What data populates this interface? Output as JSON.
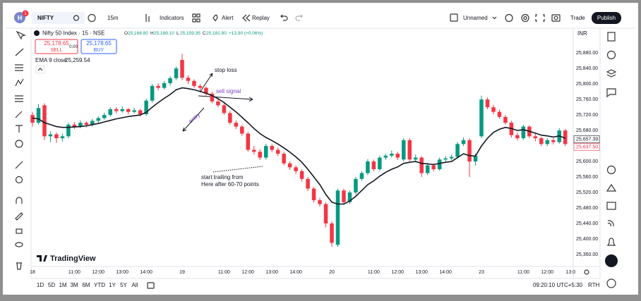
{
  "toolbar": {
    "avatar": "H",
    "badge": "1",
    "symbol": "NIFTY",
    "interval": "15m",
    "indicators": "Indicators",
    "alert": "Alert",
    "replay": "Replay",
    "layout": "Unnamed",
    "trade": "Trade",
    "publish": "Publish"
  },
  "legend": {
    "title": "Nifty 50 Index · 15 · NSE",
    "ohlc": [
      {
        "k": "O",
        "v": "25,168.80"
      },
      {
        "k": "H",
        "v": "25,189.10"
      },
      {
        "k": "L",
        "v": "25,159.35"
      },
      {
        "k": "C",
        "v": "25,181.80"
      }
    ],
    "change": "+13.90 (+0.06%)",
    "sell_price": "25,178.65",
    "sell": "SELL",
    "spread": "0.00",
    "buy_price": "25,178.65",
    "buy": "BUY",
    "ema": "EMA 9 close",
    "ema_value": "25,259.54"
  },
  "currency": "INR",
  "logo": "TradingView",
  "ranges": [
    "1D",
    "5D",
    "1M",
    "3M",
    "6M",
    "YTD",
    "1Y",
    "5Y",
    "All"
  ],
  "clock": "09:20:10 UTC+5:30",
  "session": "RTH",
  "chart_data": {
    "type": "candlestick",
    "up_color": "#089981",
    "down_color": "#f23645",
    "grid": false,
    "candles": [
      [
        25720,
        25728,
        25690,
        25700
      ],
      [
        25700,
        25748,
        25695,
        25738
      ],
      [
        25745,
        25750,
        25655,
        25665
      ],
      [
        25665,
        25678,
        25650,
        25670
      ],
      [
        25670,
        25675,
        25648,
        25660
      ],
      [
        25660,
        25672,
        25652,
        25665
      ],
      [
        25665,
        25700,
        25660,
        25695
      ],
      [
        25695,
        25702,
        25684,
        25690
      ],
      [
        25690,
        25706,
        25686,
        25700
      ],
      [
        25700,
        25704,
        25688,
        25695
      ],
      [
        25695,
        25710,
        25690,
        25705
      ],
      [
        25705,
        25716,
        25700,
        25712
      ],
      [
        25712,
        25726,
        25708,
        25720
      ],
      [
        25720,
        25740,
        25716,
        25735
      ],
      [
        25735,
        25740,
        25724,
        25730
      ],
      [
        25730,
        25742,
        25726,
        25735
      ],
      [
        25735,
        25738,
        25722,
        25728
      ],
      [
        25728,
        25738,
        25724,
        25732
      ],
      [
        25732,
        25736,
        25716,
        25722
      ],
      [
        25722,
        25762,
        25718,
        25757
      ],
      [
        25757,
        25800,
        25752,
        25795
      ],
      [
        25795,
        25802,
        25784,
        25790
      ],
      [
        25790,
        25808,
        25786,
        25802
      ],
      [
        25802,
        25820,
        25796,
        25815
      ],
      [
        25815,
        25845,
        25810,
        25840
      ],
      [
        25862,
        25878,
        25810,
        25816
      ],
      [
        25816,
        25822,
        25800,
        25808
      ],
      [
        25808,
        25812,
        25790,
        25795
      ],
      [
        25795,
        25800,
        25784,
        25790
      ],
      [
        25790,
        25794,
        25770,
        25775
      ],
      [
        25775,
        25780,
        25750,
        25755
      ],
      [
        25755,
        25762,
        25740,
        25745
      ],
      [
        25745,
        25750,
        25720,
        25725
      ],
      [
        25725,
        25730,
        25695,
        25700
      ],
      [
        25700,
        25706,
        25684,
        25690
      ],
      [
        25690,
        25695,
        25666,
        25672
      ],
      [
        25672,
        25676,
        25625,
        25630
      ],
      [
        25630,
        25640,
        25618,
        25625
      ],
      [
        25625,
        25632,
        25604,
        25610
      ],
      [
        25610,
        25646,
        25605,
        25640
      ],
      [
        25640,
        25645,
        25624,
        25630
      ],
      [
        25630,
        25636,
        25614,
        25620
      ],
      [
        25620,
        25625,
        25590,
        25595
      ],
      [
        25595,
        25600,
        25578,
        25585
      ],
      [
        25585,
        25590,
        25568,
        25575
      ],
      [
        25575,
        25580,
        25548,
        25555
      ],
      [
        25555,
        25560,
        25524,
        25530
      ],
      [
        25530,
        25535,
        25494,
        25500
      ],
      [
        25500,
        25506,
        25484,
        25490
      ],
      [
        25490,
        25495,
        25430,
        25440
      ],
      [
        25440,
        25446,
        25380,
        25390
      ],
      [
        25385,
        25530,
        25380,
        25525
      ],
      [
        25525,
        25530,
        25488,
        25495
      ],
      [
        25495,
        25525,
        25490,
        25520
      ],
      [
        25520,
        25560,
        25515,
        25555
      ],
      [
        25555,
        25575,
        25550,
        25570
      ],
      [
        25570,
        25606,
        25565,
        25600
      ],
      [
        25600,
        25605,
        25575,
        25580
      ],
      [
        25580,
        25615,
        25576,
        25610
      ],
      [
        25610,
        25620,
        25604,
        25615
      ],
      [
        25615,
        25628,
        25610,
        25620
      ],
      [
        25620,
        25625,
        25604,
        25610
      ],
      [
        25605,
        25660,
        25600,
        25655
      ],
      [
        25655,
        25660,
        25600,
        25605
      ],
      [
        25605,
        25618,
        25598,
        25610
      ],
      [
        25610,
        25614,
        25560,
        25570
      ],
      [
        25570,
        25596,
        25565,
        25590
      ],
      [
        25590,
        25595,
        25574,
        25580
      ],
      [
        25580,
        25610,
        25576,
        25605
      ],
      [
        25605,
        25614,
        25600,
        25608
      ],
      [
        25608,
        25618,
        25604,
        25612
      ],
      [
        25612,
        25650,
        25608,
        25645
      ],
      [
        25645,
        25662,
        25640,
        25655
      ],
      [
        25655,
        25660,
        25560,
        25600
      ],
      [
        25600,
        25620,
        25590,
        25615
      ],
      [
        25665,
        25770,
        25660,
        25760
      ],
      [
        25760,
        25765,
        25735,
        25740
      ],
      [
        25740,
        25746,
        25722,
        25728
      ],
      [
        25728,
        25734,
        25710,
        25715
      ],
      [
        25715,
        25720,
        25695,
        25700
      ],
      [
        25700,
        25705,
        25662,
        25668
      ],
      [
        25668,
        25675,
        25654,
        25660
      ],
      [
        25660,
        25695,
        25656,
        25690
      ],
      [
        25690,
        25694,
        25660,
        25665
      ],
      [
        25665,
        25672,
        25652,
        25660
      ],
      [
        25660,
        25664,
        25640,
        25645
      ],
      [
        25645,
        25660,
        25640,
        25655
      ],
      [
        25655,
        25660,
        25644,
        25650
      ],
      [
        25650,
        25686,
        25646,
        25680
      ],
      [
        25680,
        25684,
        25640,
        25645
      ]
    ],
    "ema": {
      "color": "#131722",
      "values": [
        25712,
        25710,
        25700,
        25695,
        25690,
        25688,
        25688,
        25689,
        25690,
        25692,
        25695,
        25698,
        25702,
        25706,
        25710,
        25713,
        25716,
        25718,
        25720,
        25727,
        25740,
        25752,
        25763,
        25773,
        25785,
        25790,
        25788,
        25785,
        25781,
        25776,
        25770,
        25762,
        25752,
        25740,
        25728,
        25714,
        25700,
        25685,
        25672,
        25662,
        25654,
        25645,
        25635,
        25624,
        25612,
        25598,
        25580,
        25560,
        25540,
        25515,
        25495,
        25490,
        25490,
        25498,
        25510,
        25525,
        25540,
        25550,
        25562,
        25572,
        25580,
        25586,
        25595,
        25598,
        25600,
        25595,
        25594,
        25592,
        25595,
        25598,
        25600,
        25610,
        25620,
        25615,
        25614,
        25640,
        25660,
        25675,
        25683,
        25688,
        25685,
        25680,
        25682,
        25678,
        25673,
        25668,
        25666,
        25663,
        25666,
        25660
      ]
    },
    "xlim": [
      -0.24,
      90.33
    ],
    "xticks": [
      {
        "value": 0,
        "label": "18"
      },
      {
        "value": 7,
        "label": "11:00"
      },
      {
        "value": 11,
        "label": "12:00"
      },
      {
        "value": 15,
        "label": "13:00"
      },
      {
        "value": 19,
        "label": "14:00"
      },
      {
        "value": 25,
        "label": "19"
      },
      {
        "value": 32,
        "label": "11:00"
      },
      {
        "value": 36,
        "label": "12:00"
      },
      {
        "value": 40,
        "label": "13:00"
      },
      {
        "value": 44,
        "label": "14:00"
      },
      {
        "value": 50,
        "label": "20"
      },
      {
        "value": 57,
        "label": "11:00"
      },
      {
        "value": 61,
        "label": "12:00"
      },
      {
        "value": 65,
        "label": "13:00"
      },
      {
        "value": 69,
        "label": "14:00"
      },
      {
        "value": 75,
        "label": "23"
      },
      {
        "value": 82,
        "label": "11:00"
      },
      {
        "value": 86,
        "label": "12:00"
      },
      {
        "value": 89.9,
        "label": "13:0"
      }
    ],
    "ylim": [
      25329,
      25944
    ],
    "yticks": [
      {
        "value": 25880,
        "label": "25,880.00"
      },
      {
        "value": 25840,
        "label": "25,840.00"
      },
      {
        "value": 25800,
        "label": "25,800.00"
      },
      {
        "value": 25760,
        "label": "25,760.00"
      },
      {
        "value": 25720,
        "label": "25,720.00"
      },
      {
        "value": 25680,
        "label": "25,680.00"
      },
      {
        "value": 25600,
        "label": "25,600.00"
      },
      {
        "value": 25560,
        "label": "25,560.00"
      },
      {
        "value": 25520,
        "label": "25,520.00"
      },
      {
        "value": 25480,
        "label": "25,480.00"
      },
      {
        "value": 25440,
        "label": "25,440.00"
      },
      {
        "value": 25400,
        "label": "25,400.00"
      },
      {
        "value": 25360,
        "label": "25,360.00"
      }
    ],
    "price_tags": [
      {
        "value": 25657.39,
        "label": "25,657.39",
        "color": "#131722"
      },
      {
        "value": 25637.5,
        "label": "25,637.50",
        "color": "#f23645"
      }
    ],
    "annotations": [
      "stop loss",
      "sell signal",
      "entry",
      "start trailing from",
      "Here after 60-70 points"
    ]
  }
}
